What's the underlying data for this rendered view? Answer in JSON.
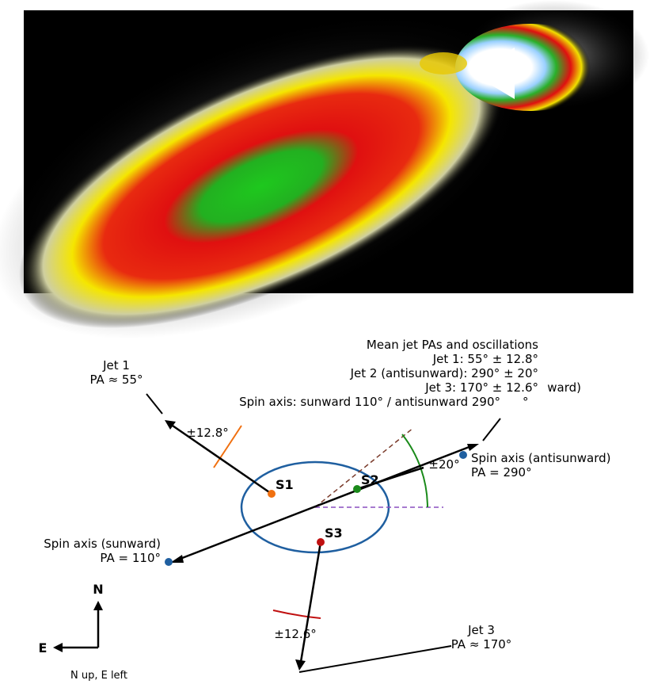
{
  "summary": {
    "title": "Mean jet PAs and oscillations",
    "lines": [
      "Jet 1: 55° ± 12.8°",
      "Jet 2 (antisunward): 290° ± 20°",
      "Jet 3: 170° ± 12.6°",
      "Spin axis: sunward 110° / antisunward 290°"
    ],
    "fragments": [
      "ward)",
      "°"
    ]
  },
  "jet1": {
    "name": "Jet 1",
    "pa": "PA ≈ 55°",
    "osc": "±12.8°"
  },
  "jet2": {
    "osc": "±20°"
  },
  "jet3": {
    "name": "Jet 3",
    "pa": "PA ≈ 170°",
    "osc": "±12.6°"
  },
  "sources": [
    "S1",
    "S2",
    "S3"
  ],
  "spin_anti": {
    "name": "Spin axis (antisunward)",
    "pa": "PA = 290°"
  },
  "spin_sun": {
    "name": "Spin axis (sunward)",
    "pa": "PA = 110°"
  },
  "compass": {
    "north": "N",
    "east": "E",
    "note": "N up, E left"
  }
}
